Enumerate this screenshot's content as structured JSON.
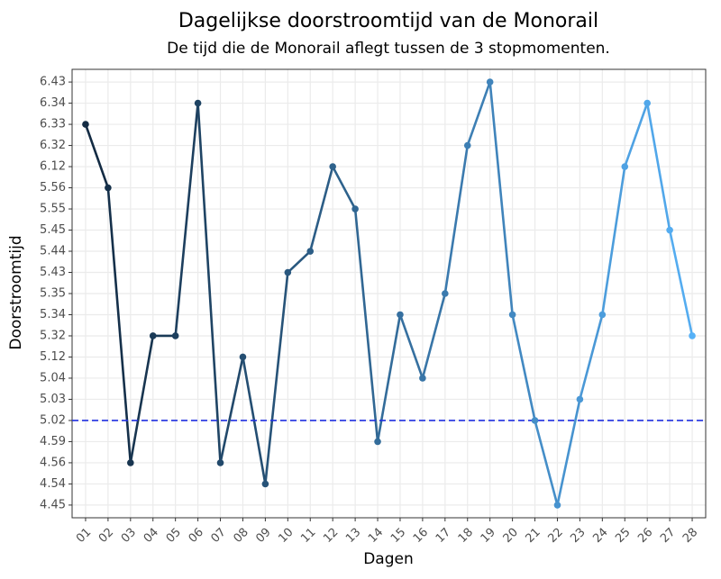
{
  "chart_data": {
    "type": "line",
    "title": "Dagelijkse doorstroomtijd van de Monorail",
    "subtitle": "De tijd die de Monorail aflegt tussen de 3 stopmomenten.",
    "x_label": "Dagen",
    "y_label": "Doorstroomtijd",
    "categories": [
      "01",
      "02",
      "03",
      "04",
      "05",
      "06",
      "07",
      "08",
      "09",
      "10",
      "11",
      "12",
      "13",
      "14",
      "15",
      "16",
      "17",
      "18",
      "19",
      "20",
      "21",
      "22",
      "23",
      "24",
      "25",
      "26",
      "27",
      "28"
    ],
    "values": [
      6.33,
      5.56,
      4.56,
      5.32,
      5.32,
      6.34,
      4.56,
      5.12,
      4.54,
      5.43,
      5.44,
      6.12,
      5.55,
      4.59,
      5.34,
      5.04,
      5.35,
      6.32,
      6.43,
      5.34,
      5.02,
      4.45,
      5.03,
      5.34,
      6.12,
      6.34,
      5.45,
      5.32
    ],
    "y_scale": "discrete",
    "yticks": [
      4.45,
      4.54,
      4.56,
      4.59,
      5.02,
      5.03,
      5.04,
      5.12,
      5.32,
      5.34,
      5.35,
      5.43,
      5.44,
      5.45,
      5.55,
      5.56,
      6.12,
      6.32,
      6.33,
      6.34,
      6.43
    ],
    "color_gradient": [
      "#132B43",
      "#56B1F7"
    ],
    "reference_line": {
      "value": 5.02,
      "color": "#1f2fe0"
    },
    "grid": true
  }
}
